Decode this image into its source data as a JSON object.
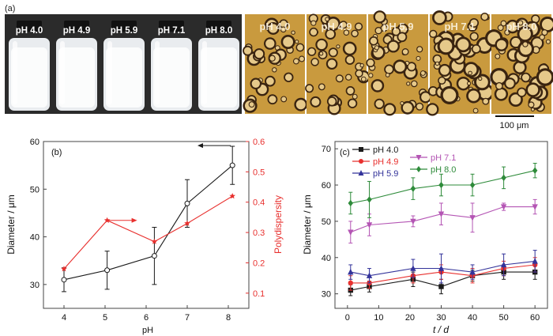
{
  "panel_a": {
    "label": "(a)",
    "vial_labels": [
      "pH 4.0",
      "pH 4.9",
      "pH 5.9",
      "pH 7.1",
      "pH 8.0"
    ],
    "micro_labels": [
      "pH 4.0",
      "pH 4.9",
      "pH 5.9",
      "pH 7.1",
      "pH 8.0"
    ],
    "scale_bar": "100 μm"
  },
  "colors": {
    "black": "#1a1a1a",
    "red": "#e8302e",
    "blue": "#33339a",
    "magenta": "#b455b4",
    "green": "#2e8b3a",
    "micro_bg": "#c99a3e"
  },
  "chart_data": [
    {
      "panel": "(b)",
      "type": "line",
      "xlabel": "pH",
      "ylabel": "Diameter / μm",
      "y2label": "Polydispersity",
      "xlim": [
        3.5,
        8.5
      ],
      "ylim": [
        25,
        60
      ],
      "y2lim": [
        0.05,
        0.6
      ],
      "xticks": [
        4,
        5,
        6,
        7,
        8
      ],
      "yticks": [
        30,
        40,
        50,
        60
      ],
      "y2ticks": [
        0.1,
        0.2,
        0.3,
        0.4,
        0.5,
        0.6
      ],
      "series": [
        {
          "axis": "left",
          "color": "black",
          "marker": "circle",
          "x": [
            4.0,
            5.05,
            6.2,
            7.0,
            8.1
          ],
          "values": [
            31,
            33,
            36,
            47,
            55
          ],
          "errors": [
            2.5,
            4,
            6,
            5,
            4
          ]
        },
        {
          "axis": "right",
          "color": "red",
          "marker": "star",
          "x": [
            4.0,
            5.05,
            6.2,
            7.0,
            8.1
          ],
          "values": [
            0.18,
            0.34,
            0.27,
            0.33,
            0.42
          ]
        }
      ],
      "arrows": [
        {
          "series": 0,
          "direction": "left"
        },
        {
          "series": 1,
          "direction": "right"
        }
      ]
    },
    {
      "panel": "(c)",
      "type": "line",
      "xlabel": "t / d",
      "ylabel": "Diameter / μm",
      "xlim": [
        -4,
        64
      ],
      "ylim": [
        26,
        72
      ],
      "xticks": [
        0,
        10,
        20,
        30,
        40,
        50,
        60
      ],
      "yticks": [
        30,
        40,
        50,
        60,
        70
      ],
      "x": [
        1,
        7,
        21,
        30,
        40,
        50,
        60
      ],
      "series": [
        {
          "name": "pH 4.0",
          "color": "black",
          "marker": "square",
          "values": [
            31,
            32,
            34,
            32,
            35,
            36,
            36
          ],
          "errors": [
            1.5,
            1.5,
            2,
            2,
            1.5,
            2,
            2
          ]
        },
        {
          "name": "pH 4.9",
          "color": "red",
          "marker": "circle",
          "values": [
            33,
            33,
            35,
            36,
            35,
            37,
            38
          ],
          "errors": [
            2,
            1.5,
            2,
            2,
            2,
            2,
            2
          ]
        },
        {
          "name": "pH 5.9",
          "color": "blue",
          "marker": "triangle-up",
          "values": [
            36,
            35,
            37,
            37,
            36,
            38,
            39
          ],
          "errors": [
            2,
            2,
            2.5,
            4,
            2,
            3,
            3
          ]
        },
        {
          "name": "pH 7.1",
          "color": "magenta",
          "marker": "triangle-down",
          "values": [
            47,
            49,
            50,
            52,
            51,
            54,
            54
          ],
          "errors": [
            3,
            3,
            1.5,
            3,
            4,
            1,
            2
          ]
        },
        {
          "name": "pH 8.0",
          "color": "green",
          "marker": "diamond",
          "values": [
            55,
            56,
            59,
            60,
            60,
            62,
            64
          ],
          "errors": [
            3,
            5,
            3,
            3,
            3,
            3,
            2
          ]
        }
      ]
    }
  ]
}
